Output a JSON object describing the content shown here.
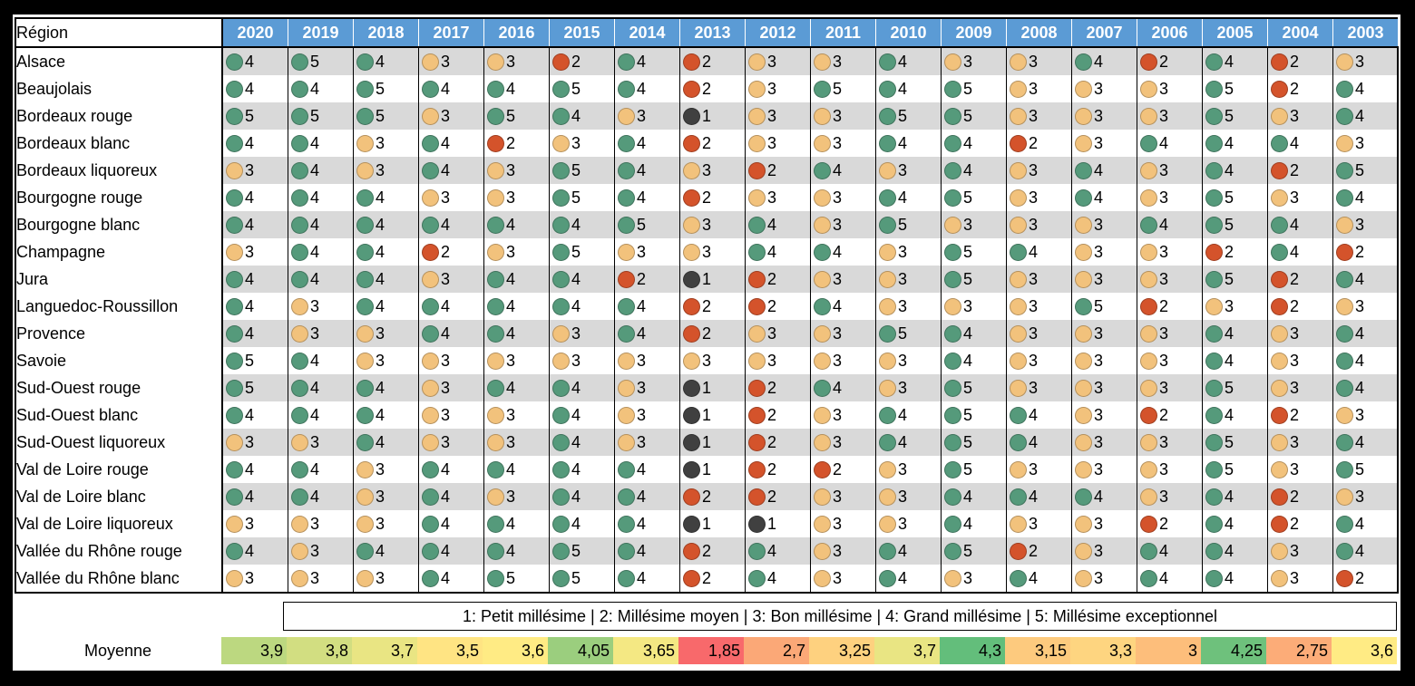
{
  "header": {
    "region_label": "Région",
    "years": [
      "2020",
      "2019",
      "2018",
      "2017",
      "2016",
      "2015",
      "2014",
      "2013",
      "2012",
      "2011",
      "2010",
      "2009",
      "2008",
      "2007",
      "2006",
      "2005",
      "2004",
      "2003"
    ]
  },
  "colors": {
    "1": "#404040",
    "2": "#d4532b",
    "3": "#f2c27c",
    "4": "#559a7b",
    "5": "#559a7b",
    "header": "#5b9bd5"
  },
  "rows": [
    {
      "region": "Alsace",
      "values": [
        4,
        5,
        4,
        3,
        3,
        2,
        4,
        2,
        3,
        3,
        4,
        3,
        3,
        4,
        2,
        4,
        2,
        3
      ]
    },
    {
      "region": "Beaujolais",
      "values": [
        4,
        4,
        5,
        4,
        4,
        5,
        4,
        2,
        3,
        5,
        4,
        5,
        3,
        3,
        3,
        5,
        2,
        4
      ]
    },
    {
      "region": "Bordeaux rouge",
      "values": [
        5,
        5,
        5,
        3,
        5,
        4,
        3,
        1,
        3,
        3,
        5,
        5,
        3,
        3,
        3,
        5,
        3,
        4
      ]
    },
    {
      "region": "Bordeaux blanc",
      "values": [
        4,
        4,
        3,
        4,
        2,
        3,
        4,
        2,
        3,
        3,
        4,
        4,
        2,
        3,
        4,
        4,
        4,
        3
      ]
    },
    {
      "region": "Bordeaux liquoreux",
      "values": [
        3,
        4,
        3,
        4,
        3,
        5,
        4,
        3,
        2,
        4,
        3,
        4,
        3,
        4,
        3,
        4,
        2,
        5
      ]
    },
    {
      "region": "Bourgogne rouge",
      "values": [
        4,
        4,
        4,
        3,
        3,
        5,
        4,
        2,
        3,
        3,
        4,
        5,
        3,
        4,
        3,
        5,
        3,
        4
      ]
    },
    {
      "region": "Bourgogne blanc",
      "values": [
        4,
        4,
        4,
        4,
        4,
        4,
        5,
        3,
        4,
        3,
        5,
        3,
        3,
        3,
        4,
        5,
        4,
        3
      ]
    },
    {
      "region": "Champagne",
      "values": [
        3,
        4,
        4,
        2,
        3,
        5,
        3,
        3,
        4,
        4,
        3,
        5,
        4,
        3,
        3,
        2,
        4,
        2
      ]
    },
    {
      "region": "Jura",
      "values": [
        4,
        4,
        4,
        3,
        4,
        4,
        2,
        1,
        2,
        3,
        3,
        5,
        3,
        3,
        3,
        5,
        2,
        4
      ]
    },
    {
      "region": "Languedoc-Roussillon",
      "values": [
        4,
        3,
        4,
        4,
        4,
        4,
        4,
        2,
        2,
        4,
        3,
        3,
        3,
        5,
        2,
        3,
        2,
        3
      ]
    },
    {
      "region": "Provence",
      "values": [
        4,
        3,
        3,
        4,
        4,
        3,
        4,
        2,
        3,
        3,
        5,
        4,
        3,
        3,
        3,
        4,
        3,
        4
      ]
    },
    {
      "region": "Savoie",
      "values": [
        5,
        4,
        3,
        3,
        3,
        3,
        3,
        3,
        3,
        3,
        3,
        4,
        3,
        3,
        3,
        4,
        3,
        4
      ]
    },
    {
      "region": "Sud-Ouest rouge",
      "values": [
        5,
        4,
        4,
        3,
        4,
        4,
        3,
        1,
        2,
        4,
        3,
        5,
        3,
        3,
        3,
        5,
        3,
        4
      ]
    },
    {
      "region": "Sud-Ouest blanc",
      "values": [
        4,
        4,
        4,
        3,
        3,
        4,
        3,
        1,
        2,
        3,
        4,
        5,
        4,
        3,
        2,
        4,
        2,
        3
      ]
    },
    {
      "region": "Sud-Ouest liquoreux",
      "values": [
        3,
        3,
        4,
        3,
        3,
        4,
        3,
        1,
        2,
        3,
        4,
        5,
        4,
        3,
        3,
        5,
        3,
        4
      ]
    },
    {
      "region": "Val de Loire rouge",
      "values": [
        4,
        4,
        3,
        4,
        4,
        4,
        4,
        1,
        2,
        2,
        3,
        5,
        3,
        3,
        3,
        5,
        3,
        5
      ]
    },
    {
      "region": "Val de Loire blanc",
      "values": [
        4,
        4,
        3,
        4,
        3,
        4,
        4,
        2,
        2,
        3,
        3,
        4,
        4,
        4,
        3,
        4,
        2,
        3
      ]
    },
    {
      "region": "Val de Loire liquoreux",
      "values": [
        3,
        3,
        3,
        4,
        4,
        4,
        4,
        1,
        1,
        3,
        3,
        4,
        3,
        3,
        2,
        4,
        2,
        4
      ]
    },
    {
      "region": "Vallée du Rhône rouge",
      "values": [
        4,
        3,
        4,
        4,
        4,
        5,
        4,
        2,
        4,
        3,
        4,
        5,
        2,
        3,
        4,
        4,
        3,
        4
      ]
    },
    {
      "region": "Vallée du Rhône blanc",
      "values": [
        3,
        3,
        3,
        4,
        5,
        5,
        4,
        2,
        4,
        3,
        4,
        3,
        4,
        3,
        4,
        4,
        3,
        2
      ]
    }
  ],
  "legend": "1: Petit millésime | 2: Millésime moyen | 3: Bon millésime | 4: Grand millésime | 5: Millésime exceptionnel",
  "average": {
    "label": "Moyenne",
    "values": [
      "3,9",
      "3,8",
      "3,7",
      "3,5",
      "3,6",
      "4,05",
      "3,65",
      "1,85",
      "2,7",
      "3,25",
      "3,7",
      "4,3",
      "3,15",
      "3,3",
      "3",
      "4,25",
      "2,75",
      "3,6"
    ]
  }
}
